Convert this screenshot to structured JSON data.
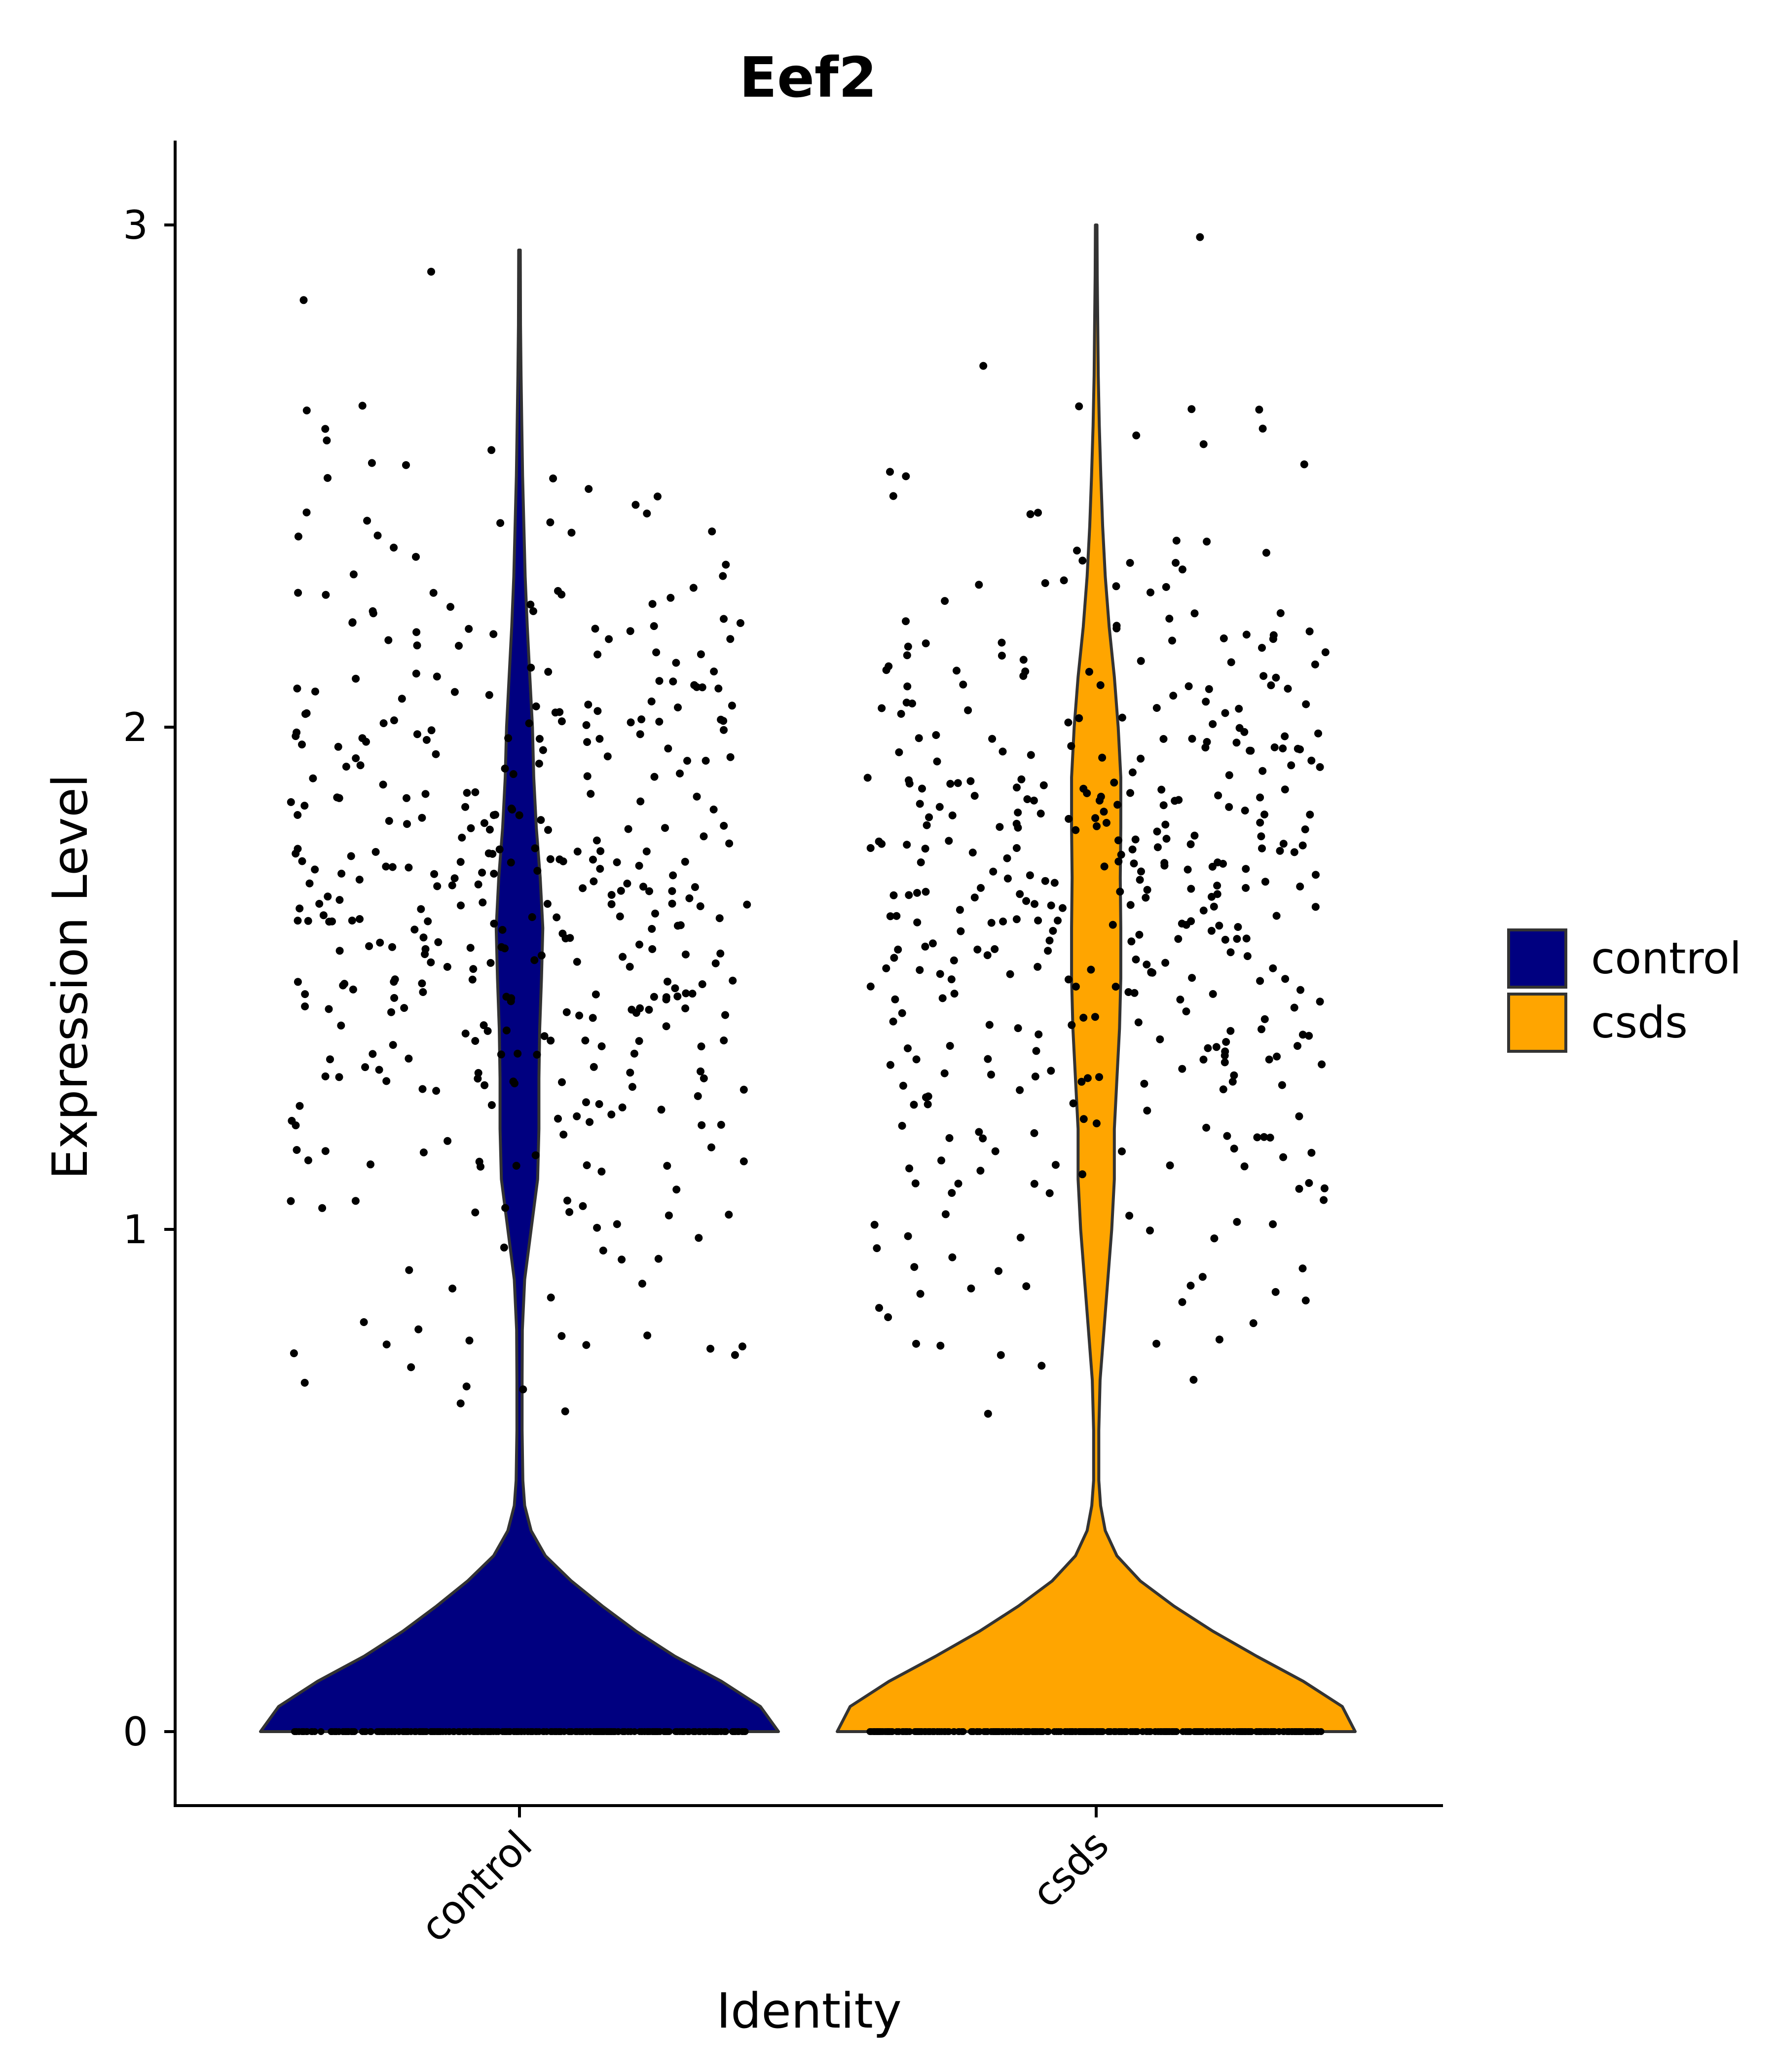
{
  "chart_data": {
    "type": "violin",
    "title": "Eef2",
    "xlabel": "Identity",
    "ylabel": "Expression Level",
    "categories": [
      "control",
      "csds"
    ],
    "y_ticks": [
      0,
      1,
      2,
      3
    ],
    "ylim": [
      -0.15,
      3.18
    ],
    "legend": {
      "placement": "right",
      "entries": [
        "control",
        "csds"
      ]
    },
    "colors": {
      "control": "#000080",
      "csds": "#FFA500",
      "outline": "#333333",
      "points": "#000000"
    },
    "grid": false,
    "series": [
      {
        "name": "control",
        "max": 2.95,
        "density": [
          [
            0,
            1.0
          ],
          [
            0.05,
            0.93
          ],
          [
            0.1,
            0.78
          ],
          [
            0.15,
            0.6
          ],
          [
            0.2,
            0.45
          ],
          [
            0.25,
            0.32
          ],
          [
            0.3,
            0.2
          ],
          [
            0.35,
            0.1
          ],
          [
            0.4,
            0.045
          ],
          [
            0.45,
            0.02
          ],
          [
            0.5,
            0.013
          ],
          [
            0.6,
            0.01
          ],
          [
            0.7,
            0.01
          ],
          [
            0.8,
            0.011
          ],
          [
            0.9,
            0.02
          ],
          [
            1.0,
            0.045
          ],
          [
            1.1,
            0.07
          ],
          [
            1.2,
            0.075
          ],
          [
            1.3,
            0.075
          ],
          [
            1.4,
            0.078
          ],
          [
            1.5,
            0.085
          ],
          [
            1.6,
            0.09
          ],
          [
            1.7,
            0.08
          ],
          [
            1.8,
            0.065
          ],
          [
            1.9,
            0.055
          ],
          [
            2.0,
            0.05
          ],
          [
            2.1,
            0.04
          ],
          [
            2.2,
            0.03
          ],
          [
            2.3,
            0.022
          ],
          [
            2.4,
            0.017
          ],
          [
            2.5,
            0.012
          ],
          [
            2.6,
            0.009
          ],
          [
            2.7,
            0.006
          ],
          [
            2.8,
            0.004
          ],
          [
            2.95,
            0.003
          ]
        ]
      },
      {
        "name": "csds",
        "max": 3.0,
        "density": [
          [
            0,
            1.0
          ],
          [
            0.05,
            0.95
          ],
          [
            0.1,
            0.8
          ],
          [
            0.15,
            0.62
          ],
          [
            0.2,
            0.45
          ],
          [
            0.25,
            0.3
          ],
          [
            0.3,
            0.17
          ],
          [
            0.35,
            0.08
          ],
          [
            0.4,
            0.035
          ],
          [
            0.45,
            0.017
          ],
          [
            0.5,
            0.01
          ],
          [
            0.6,
            0.01
          ],
          [
            0.7,
            0.015
          ],
          [
            0.8,
            0.03
          ],
          [
            0.9,
            0.045
          ],
          [
            1.0,
            0.06
          ],
          [
            1.1,
            0.07
          ],
          [
            1.2,
            0.07
          ],
          [
            1.3,
            0.08
          ],
          [
            1.4,
            0.09
          ],
          [
            1.5,
            0.095
          ],
          [
            1.6,
            0.095
          ],
          [
            1.7,
            0.093
          ],
          [
            1.8,
            0.095
          ],
          [
            1.9,
            0.095
          ],
          [
            2.0,
            0.085
          ],
          [
            2.1,
            0.07
          ],
          [
            2.2,
            0.05
          ],
          [
            2.3,
            0.035
          ],
          [
            2.4,
            0.025
          ],
          [
            2.5,
            0.018
          ],
          [
            2.6,
            0.012
          ],
          [
            2.7,
            0.008
          ],
          [
            2.8,
            0.006
          ],
          [
            2.9,
            0.004
          ],
          [
            3.0,
            0.003
          ]
        ]
      }
    ]
  }
}
